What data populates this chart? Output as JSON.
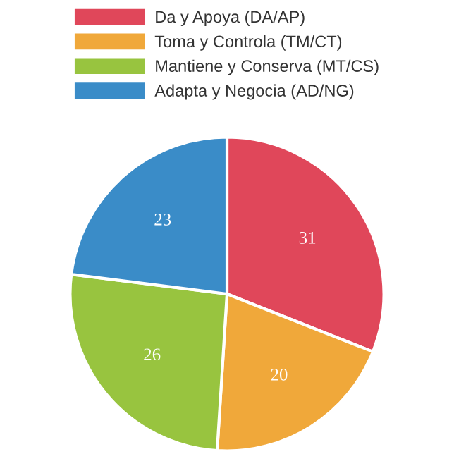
{
  "chart_data": {
    "type": "pie",
    "categories": [
      "Da y Apoya (DA/AP)",
      "Toma y Controla (TM/CT)",
      "Mantiene y Conserva (MT/CS)",
      "Adapta y Negocia (AD/NG)"
    ],
    "values": [
      31,
      20,
      26,
      23
    ],
    "colors": [
      "#e0475a",
      "#f0a83a",
      "#98c43f",
      "#3a8cc8"
    ],
    "data_labels": true,
    "legend": "top"
  }
}
